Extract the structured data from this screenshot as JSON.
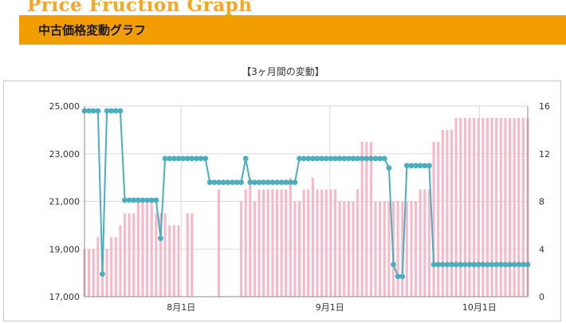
{
  "header": {
    "brand": "Price Fruction Graph",
    "title": "中古価格変動グラフ"
  },
  "chart_data": {
    "type": "bar+line",
    "title": "【3ヶ月間の変動】",
    "x_labels": [
      "8月1日",
      "9月1日",
      "10月1日"
    ],
    "y_left": {
      "min": 17000,
      "max": 25000,
      "ticks": [
        "25,000",
        "23,000",
        "21,000",
        "19,000",
        "17,000"
      ]
    },
    "y_right": {
      "min": 0,
      "max": 16,
      "ticks": [
        "16",
        "12",
        "8",
        "4",
        "0"
      ]
    },
    "grid": true,
    "colors": {
      "bars": "#f7b9c8",
      "line": "#4cadbd",
      "grid": "#d9d9d9"
    },
    "bars_count": [
      4,
      4,
      4,
      5,
      4,
      4,
      5,
      5,
      6,
      7,
      7,
      7,
      8,
      8,
      8,
      8,
      7,
      7,
      7,
      6,
      6,
      6,
      0,
      7,
      7,
      0,
      0,
      0,
      0,
      0,
      9,
      0,
      0,
      0,
      0,
      8,
      9,
      10,
      8,
      9,
      9,
      9,
      9,
      9,
      9,
      9,
      10,
      8,
      8,
      9,
      9,
      10,
      9,
      9,
      9,
      9,
      9,
      8,
      8,
      8,
      8,
      9,
      13,
      13,
      13,
      8,
      8,
      8,
      8,
      8,
      8,
      8,
      8,
      8,
      8,
      9,
      9,
      9,
      13,
      13,
      14,
      14,
      14,
      15,
      15,
      15,
      15,
      15,
      15,
      15,
      15,
      15,
      15,
      15,
      15,
      15,
      15,
      15,
      15,
      15
    ],
    "price": [
      24800,
      24800,
      24800,
      24800,
      17950,
      24800,
      24800,
      24800,
      24800,
      21050,
      21050,
      21050,
      21050,
      21050,
      21050,
      21050,
      21050,
      19450,
      22800,
      22800,
      22800,
      22800,
      22800,
      22800,
      22800,
      22800,
      22800,
      22800,
      21800,
      21800,
      21800,
      21800,
      21800,
      21800,
      21800,
      21800,
      22800,
      21800,
      21800,
      21800,
      21800,
      21800,
      21800,
      21800,
      21800,
      21800,
      21800,
      21800,
      22800,
      22800,
      22800,
      22800,
      22800,
      22800,
      22800,
      22800,
      22800,
      22800,
      22800,
      22800,
      22800,
      22800,
      22800,
      22800,
      22800,
      22800,
      22800,
      22800,
      22400,
      18350,
      17850,
      17850,
      22500,
      22500,
      22500,
      22500,
      22500,
      22500,
      18350,
      18350,
      18350,
      18350,
      18350,
      18350,
      18350,
      18350,
      18350,
      18350,
      18350,
      18350,
      18350,
      18350,
      18350,
      18350,
      18350,
      18350,
      18350,
      18350,
      18350,
      18350
    ]
  }
}
